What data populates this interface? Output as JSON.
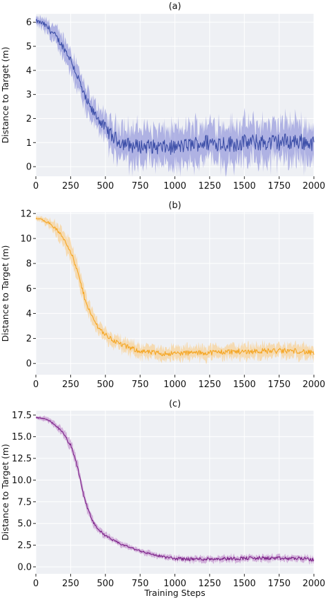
{
  "chart_data": [
    {
      "type": "line",
      "title": "(a)",
      "xlabel": "",
      "ylabel": "Distance to Target (m)",
      "xlim": [
        0,
        2000
      ],
      "ylim": [
        -0.4,
        6.35
      ],
      "xticks": [
        0,
        250,
        500,
        750,
        1000,
        1250,
        1500,
        1750,
        2000
      ],
      "xtick_labels": [
        "0",
        "250",
        "500",
        "750",
        "1000",
        "1250",
        "1500",
        "1750",
        "2000"
      ],
      "yticks": [
        0,
        1,
        2,
        3,
        4,
        5,
        6
      ],
      "ytick_labels": [
        "0",
        "1",
        "2",
        "3",
        "4",
        "5",
        "6"
      ],
      "grid": true,
      "background": "#eef0f4",
      "color": "#3d4fa8",
      "band_color": "#7b7fd6",
      "series": [
        {
          "x": [
            0,
            50,
            100,
            150,
            200,
            250,
            300,
            350,
            400,
            450,
            500,
            550,
            600,
            650,
            700,
            750,
            800,
            900,
            1000,
            1100,
            1200,
            1300,
            1400,
            1500,
            1600,
            1700,
            1800,
            1900,
            2000
          ],
          "values": [
            6.05,
            5.95,
            5.7,
            5.35,
            4.95,
            4.45,
            3.75,
            2.9,
            2.35,
            2.0,
            1.6,
            1.25,
            1.05,
            0.95,
            0.85,
            0.85,
            0.85,
            0.8,
            0.8,
            0.9,
            1.0,
            1.0,
            0.95,
            1.0,
            1.0,
            1.0,
            1.05,
            1.05,
            0.95
          ],
          "spread": [
            0.15,
            0.25,
            0.35,
            0.4,
            0.45,
            0.5,
            0.55,
            0.55,
            0.5,
            0.5,
            0.55,
            0.65,
            0.75,
            0.8,
            0.8,
            0.8,
            0.8,
            0.8,
            0.8,
            0.85,
            0.85,
            0.85,
            0.85,
            0.85,
            0.85,
            0.85,
            0.85,
            0.85,
            0.85
          ],
          "jitter": [
            0.08,
            0.1,
            0.15,
            0.15,
            0.15,
            0.15,
            0.2,
            0.2,
            0.2,
            0.2,
            0.25,
            0.3,
            0.3,
            0.3,
            0.3,
            0.3,
            0.3,
            0.3,
            0.3,
            0.3,
            0.35,
            0.35,
            0.35,
            0.35,
            0.35,
            0.35,
            0.35,
            0.35,
            0.3
          ]
        }
      ]
    },
    {
      "type": "line",
      "title": "(b)",
      "xlabel": "",
      "ylabel": "Distance to Target (m)",
      "xlim": [
        0,
        2000
      ],
      "ylim": [
        -0.9,
        12.1
      ],
      "xticks": [
        0,
        250,
        500,
        750,
        1000,
        1250,
        1500,
        1750,
        2000
      ],
      "xtick_labels": [
        "0",
        "250",
        "500",
        "750",
        "1000",
        "1250",
        "1500",
        "1750",
        "2000"
      ],
      "yticks": [
        0,
        2,
        4,
        6,
        8,
        10,
        12
      ],
      "ytick_labels": [
        "0",
        "2",
        "4",
        "6",
        "8",
        "10",
        "12"
      ],
      "grid": true,
      "background": "#eef0f4",
      "color": "#f5a623",
      "band_color": "#fbc97a",
      "series": [
        {
          "x": [
            0,
            50,
            100,
            150,
            200,
            250,
            300,
            350,
            400,
            450,
            500,
            550,
            600,
            650,
            700,
            750,
            800,
            900,
            1000,
            1100,
            1200,
            1300,
            1400,
            1500,
            1600,
            1700,
            1800,
            1900,
            2000
          ],
          "values": [
            11.6,
            11.5,
            11.2,
            10.7,
            10.0,
            9.0,
            7.3,
            5.3,
            3.8,
            2.9,
            2.3,
            1.9,
            1.6,
            1.35,
            1.15,
            1.0,
            0.9,
            0.8,
            0.8,
            0.85,
            0.85,
            0.9,
            0.95,
            0.95,
            1.0,
            1.0,
            1.0,
            1.0,
            0.8
          ],
          "spread": [
            0.15,
            0.25,
            0.4,
            0.55,
            0.7,
            0.8,
            0.8,
            0.7,
            0.6,
            0.55,
            0.55,
            0.55,
            0.55,
            0.55,
            0.55,
            0.55,
            0.55,
            0.55,
            0.55,
            0.55,
            0.55,
            0.55,
            0.55,
            0.55,
            0.55,
            0.55,
            0.55,
            0.55,
            0.5
          ],
          "jitter": [
            0.05,
            0.08,
            0.1,
            0.12,
            0.15,
            0.18,
            0.2,
            0.2,
            0.18,
            0.18,
            0.18,
            0.18,
            0.2,
            0.2,
            0.2,
            0.2,
            0.2,
            0.2,
            0.2,
            0.2,
            0.2,
            0.22,
            0.22,
            0.22,
            0.22,
            0.22,
            0.22,
            0.22,
            0.2
          ]
        }
      ]
    },
    {
      "type": "line",
      "title": "(c)",
      "xlabel": "Training Steps",
      "ylabel": "Distance to Target (m)",
      "xlim": [
        0,
        2000
      ],
      "ylim": [
        -0.8,
        18.0
      ],
      "xticks": [
        0,
        250,
        500,
        750,
        1000,
        1250,
        1500,
        1750,
        2000
      ],
      "xtick_labels": [
        "0",
        "250",
        "500",
        "750",
        "1000",
        "1250",
        "1500",
        "1750",
        "2000"
      ],
      "yticks": [
        0,
        2.5,
        5,
        7.5,
        10,
        12.5,
        15,
        17.5
      ],
      "ytick_labels": [
        "0.0",
        "2.5",
        "5.0",
        "7.5",
        "10.0",
        "12.5",
        "15.0",
        "17.5"
      ],
      "grid": true,
      "background": "#eef0f4",
      "color": "#7a1f86",
      "band_color": "#b97cc4",
      "series": [
        {
          "x": [
            0,
            50,
            100,
            150,
            200,
            250,
            300,
            350,
            400,
            450,
            500,
            550,
            600,
            650,
            700,
            750,
            800,
            900,
            1000,
            1100,
            1200,
            1300,
            1400,
            1500,
            1600,
            1700,
            1800,
            1900,
            2000
          ],
          "values": [
            17.2,
            17.1,
            16.8,
            16.2,
            15.3,
            14.0,
            11.5,
            7.8,
            5.5,
            4.3,
            3.6,
            3.1,
            2.7,
            2.4,
            2.1,
            1.85,
            1.6,
            1.2,
            0.95,
            0.9,
            0.9,
            0.95,
            0.95,
            1.0,
            1.0,
            1.0,
            0.95,
            1.0,
            0.8
          ],
          "spread": [
            0.15,
            0.25,
            0.3,
            0.4,
            0.5,
            0.6,
            0.7,
            0.6,
            0.5,
            0.4,
            0.35,
            0.3,
            0.3,
            0.3,
            0.3,
            0.3,
            0.3,
            0.3,
            0.3,
            0.35,
            0.35,
            0.35,
            0.35,
            0.35,
            0.35,
            0.35,
            0.35,
            0.35,
            0.35
          ],
          "jitter": [
            0.05,
            0.08,
            0.1,
            0.1,
            0.15,
            0.2,
            0.2,
            0.2,
            0.18,
            0.15,
            0.12,
            0.12,
            0.12,
            0.12,
            0.12,
            0.12,
            0.12,
            0.15,
            0.18,
            0.2,
            0.2,
            0.2,
            0.2,
            0.2,
            0.2,
            0.2,
            0.2,
            0.2,
            0.2
          ]
        }
      ]
    }
  ]
}
